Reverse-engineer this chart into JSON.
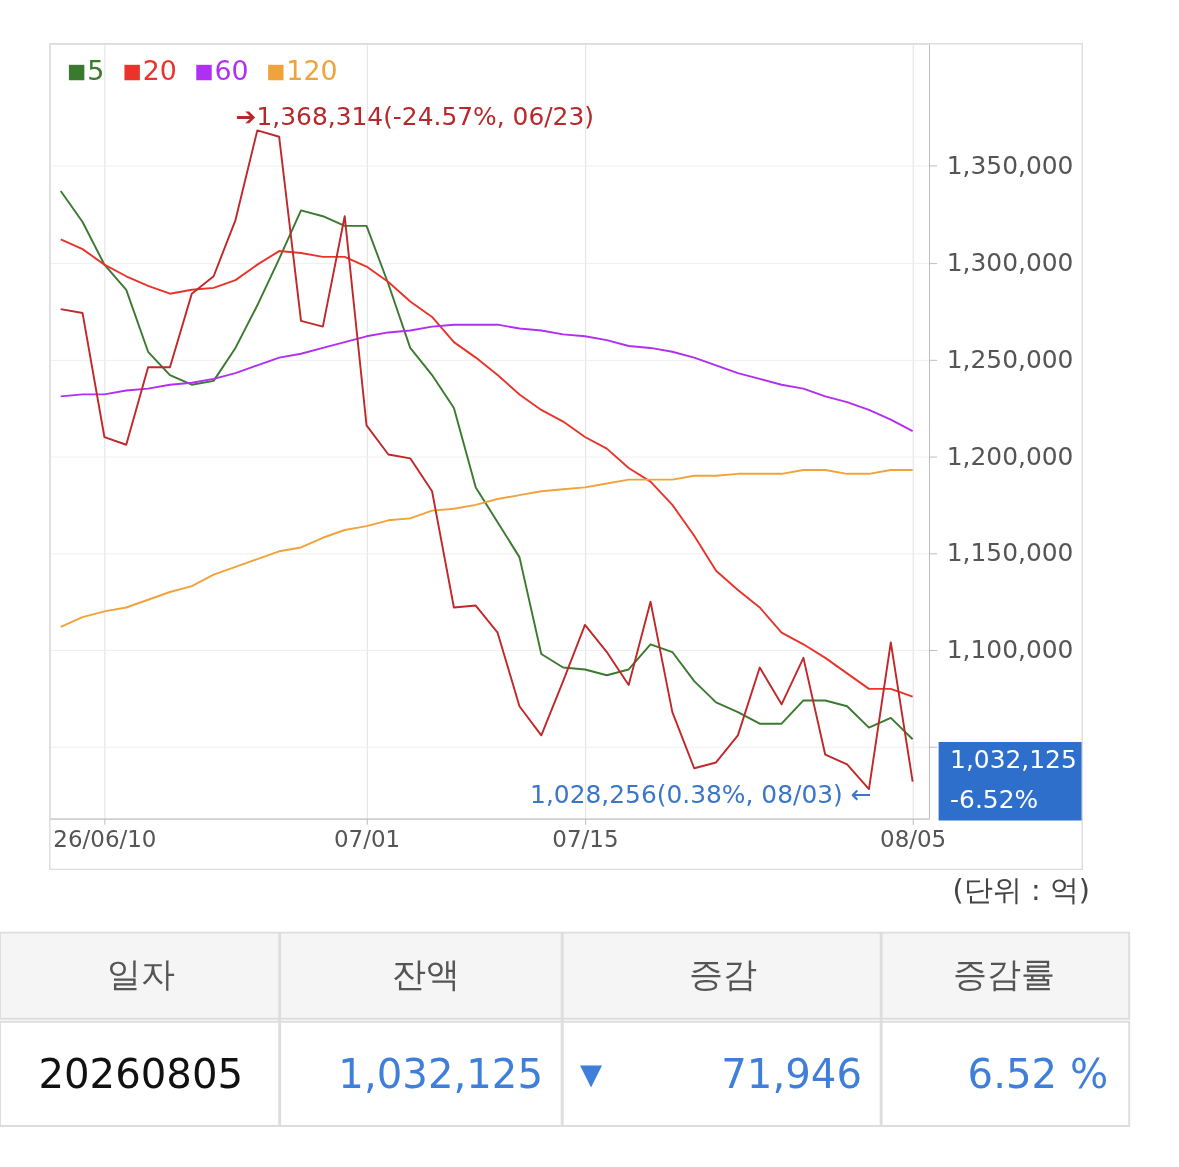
{
  "chart_data": {
    "type": "line",
    "categories": [
      null,
      null,
      "26/06/10",
      null,
      null,
      null,
      null,
      null,
      null,
      null,
      null,
      null,
      null,
      null,
      "07/01",
      null,
      null,
      null,
      null,
      null,
      null,
      null,
      null,
      null,
      "07/15",
      null,
      null,
      null,
      null,
      null,
      null,
      null,
      null,
      null,
      null,
      null,
      null,
      null,
      null,
      "08/05"
    ],
    "series": [
      {
        "name": "5",
        "color": "#3a7a2e",
        "values": [
          1337000,
          1321000,
          1299000,
          1286000,
          1254000,
          1242000,
          1237000,
          1239000,
          1256000,
          1278000,
          1302000,
          1327000,
          1324000,
          1319000,
          1319000,
          1289000,
          1256000,
          1242000,
          1225000,
          1184000,
          1166000,
          1148000,
          1098000,
          1091000,
          1090000,
          1087000,
          1090000,
          1103000,
          1099000,
          1084000,
          1073000,
          1068000,
          1062000,
          1062000,
          1074000,
          1074000,
          1071000,
          1060000,
          1065000,
          1054000
        ]
      },
      {
        "name": "20",
        "color": "#e8342b",
        "values": [
          1312000,
          1307000,
          1299000,
          1293000,
          1288000,
          1284000,
          1286000,
          1287000,
          1291000,
          1299000,
          1306000,
          1305000,
          1303000,
          1303000,
          1298000,
          1290000,
          1280000,
          1272000,
          1259000,
          1251000,
          1242000,
          1232000,
          1224000,
          1218000,
          1210000,
          1204000,
          1194000,
          1187000,
          1175000,
          1159000,
          1141000,
          1131000,
          1122000,
          1109000,
          1103000,
          1096000,
          1088000,
          1080000,
          1080000,
          1076000
        ]
      },
      {
        "name": "60",
        "color": "#b12ff2",
        "values": [
          1231000,
          1232000,
          1232000,
          1234000,
          1235000,
          1237000,
          1238000,
          1240000,
          1243000,
          1247000,
          1251000,
          1253000,
          1256000,
          1259000,
          1262000,
          1264000,
          1265000,
          1267000,
          1268000,
          1268000,
          1268000,
          1266000,
          1265000,
          1263000,
          1262000,
          1260000,
          1257000,
          1256000,
          1254000,
          1251000,
          1247000,
          1243000,
          1240000,
          1237000,
          1235000,
          1231000,
          1228000,
          1224000,
          1219000,
          1213000
        ]
      },
      {
        "name": "120",
        "color": "#f0a33a",
        "values": [
          1112000,
          1117000,
          1120000,
          1122000,
          1126000,
          1130000,
          1133000,
          1139000,
          1143000,
          1147000,
          1151000,
          1153000,
          1158000,
          1162000,
          1164000,
          1167000,
          1168000,
          1172000,
          1173000,
          1175000,
          1178000,
          1180000,
          1182000,
          1183000,
          1184000,
          1186000,
          1188000,
          1188000,
          1188000,
          1190000,
          1190000,
          1191000,
          1191000,
          1191000,
          1193000,
          1193000,
          1191000,
          1191000,
          1193000,
          1193000
        ]
      },
      {
        "color": "#c0282a",
        "values": [
          1276000,
          1274000,
          1210000,
          1206000,
          1246000,
          1246000,
          1284000,
          1293000,
          1322000,
          1368314,
          1365000,
          1270000,
          1267000,
          1324000,
          1216000,
          1201000,
          1199000,
          1182000,
          1122000,
          1123000,
          1109000,
          1071000,
          1056000,
          1084000,
          1113000,
          1099000,
          1082000,
          1125000,
          1068000,
          1039000,
          1042000,
          1056000,
          1091000,
          1072000,
          1096000,
          1046000,
          1041000,
          1028256,
          1104000,
          1032125
        ]
      }
    ],
    "ylim": [
      1013000,
      1413000
    ],
    "yticks": [
      {
        "value": 1050000,
        "label": null
      },
      {
        "value": 1100000,
        "label": "1,100,000"
      },
      {
        "value": 1150000,
        "label": "1,150,000"
      },
      {
        "value": 1200000,
        "label": "1,200,000"
      },
      {
        "value": 1250000,
        "label": "1,250,000"
      },
      {
        "value": 1300000,
        "label": "1,300,000"
      },
      {
        "value": 1350000,
        "label": "1,350,000"
      }
    ],
    "grid": true,
    "legend": "top left",
    "line_style": "solid",
    "annotations": [
      "➔1,368,314(-24.57%, 06/23)",
      "1,028,256(0.38%, 08/03)  ←",
      "1,032,125",
      "-6.52%",
      "(단위 : 억)",
      "일자",
      "잔액",
      "증감",
      "증감률",
      "20260805",
      "1,032,125",
      "▼",
      "71,946",
      "6.52 %"
    ]
  }
}
